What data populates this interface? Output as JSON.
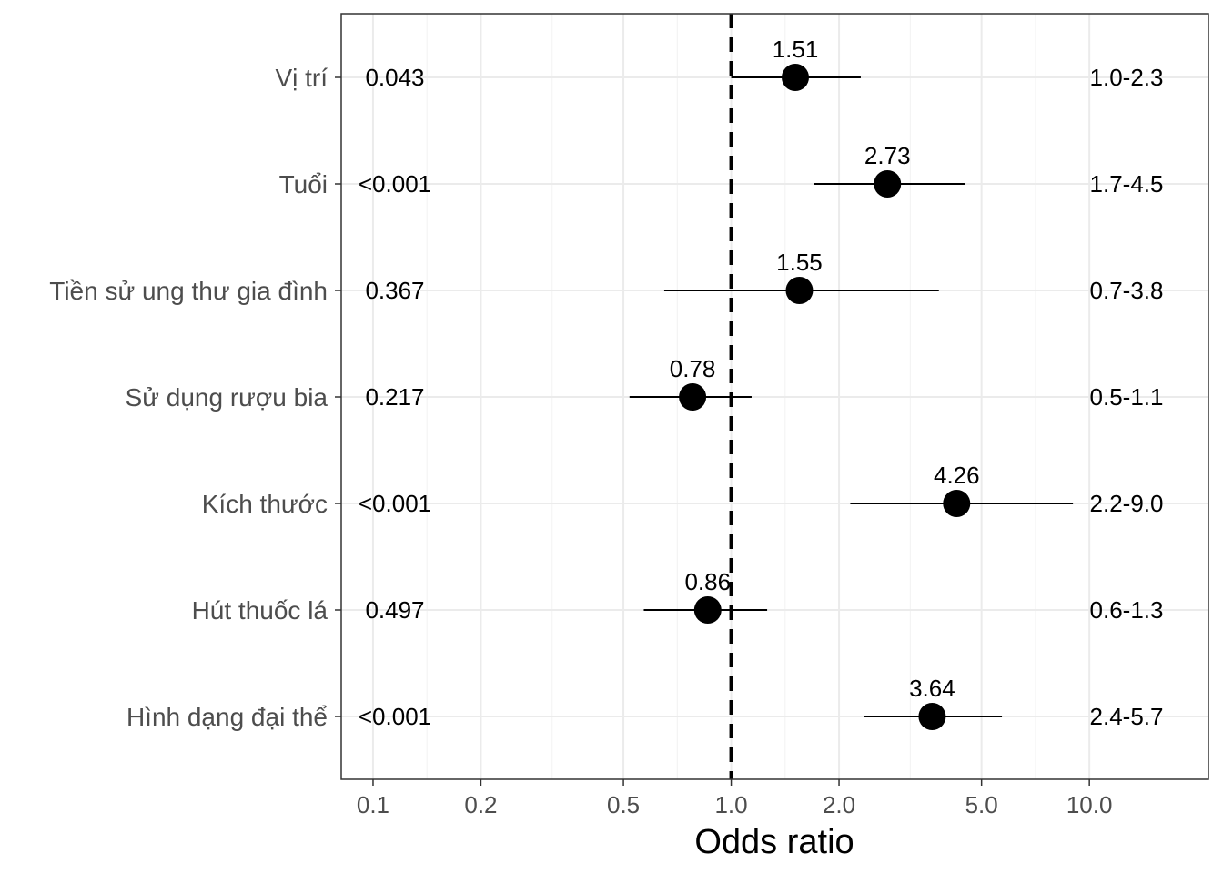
{
  "chart_data": {
    "type": "forest",
    "title": "",
    "xlabel": "Odds ratio",
    "ylabel": "",
    "x_scale": "log",
    "xlim": [
      0.0815,
      21.5
    ],
    "xticks": [
      0.1,
      0.2,
      0.5,
      1.0,
      2.0,
      5.0,
      10.0
    ],
    "xtick_labels": [
      "0.1",
      "0.2",
      "0.5",
      "1.0",
      "2.0",
      "5.0",
      "10.0"
    ],
    "reference_line": 1.0,
    "grid": true,
    "rows": [
      {
        "label": "Vị trí",
        "or": 1.51,
        "or_label": "1.51",
        "lower": 1.0,
        "upper": 2.3,
        "p": "0.043",
        "ci": "1.0-2.3"
      },
      {
        "label": "Tuổi",
        "or": 2.73,
        "or_label": "2.73",
        "lower": 1.7,
        "upper": 4.5,
        "p": "<0.001",
        "ci": "1.7-4.5"
      },
      {
        "label": "Tiền sử ung thư gia đình",
        "or": 1.55,
        "or_label": "1.55",
        "lower": 0.65,
        "upper": 3.8,
        "p": "0.367",
        "ci": "0.7-3.8"
      },
      {
        "label": "Sử dụng rượu bia",
        "or": 0.78,
        "or_label": "0.78",
        "lower": 0.52,
        "upper": 1.14,
        "p": "0.217",
        "ci": "0.5-1.1"
      },
      {
        "label": "Kích thước",
        "or": 4.26,
        "or_label": "4.26",
        "lower": 2.15,
        "upper": 9.0,
        "p": "<0.001",
        "ci": "2.2-9.0"
      },
      {
        "label": "Hút thuốc lá",
        "or": 0.86,
        "or_label": "0.86",
        "lower": 0.57,
        "upper": 1.26,
        "p": "0.497",
        "ci": "0.6-1.3"
      },
      {
        "label": "Hình dạng đại thể",
        "or": 3.64,
        "or_label": "3.64",
        "lower": 2.35,
        "upper": 5.7,
        "p": "<0.001",
        "ci": "2.4-5.7"
      }
    ]
  }
}
